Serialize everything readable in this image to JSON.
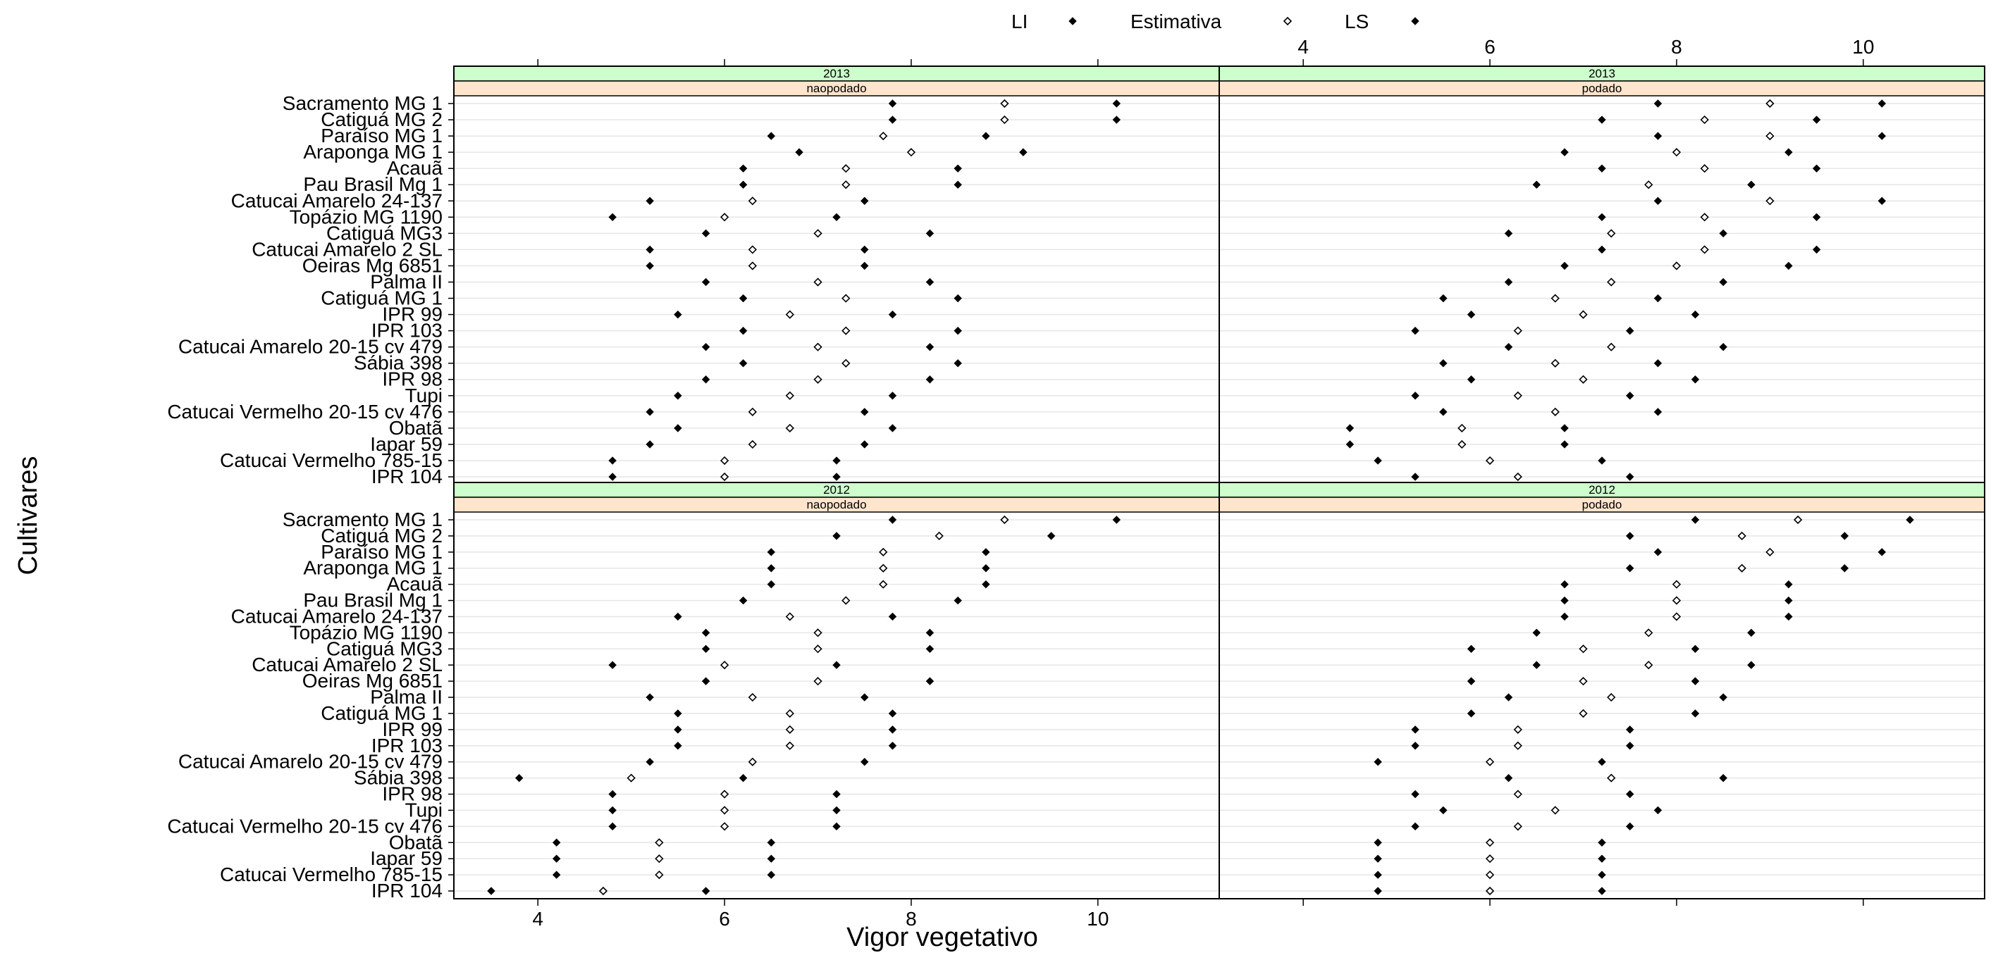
{
  "chart_data": {
    "type": "scatter",
    "title": "",
    "xlabel": "Vigor vegetativo",
    "ylabel": "Cultivares",
    "xlim": [
      3.1,
      11.3
    ],
    "xticks": [
      4,
      6,
      8,
      10
    ],
    "grid": true,
    "legend_position": "top",
    "legend": [
      {
        "label": "LI",
        "marker": "filled-diamond"
      },
      {
        "label": "Estimativa",
        "marker": "open-diamond"
      },
      {
        "label": "LS",
        "marker": "filled-diamond"
      }
    ],
    "colors": {
      "strip_year": "#ccffcc",
      "strip_treatment": "#ffe5cc",
      "frame": "#000000",
      "grid": "#e6e6e6"
    },
    "categories": [
      "Sacramento MG 1",
      "Catiguá MG 2",
      "Paraíso MG 1",
      "Araponga MG 1",
      "Acauã",
      "Pau Brasil Mg 1",
      "Catucai Amarelo 24-137",
      "Topázio MG 1190",
      "Catiguá MG3",
      "Catucai Amarelo 2 SL",
      "Oeiras Mg 6851",
      "Palma II",
      "Catiguá MG 1",
      "IPR 99",
      "IPR 103",
      "Catucai Amarelo 20-15 cv 479",
      "Sábia 398",
      "IPR 98",
      "Tupi",
      "Catucai Vermelho 20-15 cv 476",
      "Obatã",
      "Iapar 59",
      "Catucai Vermelho 785-15",
      "IPR 104"
    ],
    "panels": [
      {
        "year": "2013",
        "treatment": "naopodado",
        "LI": [
          7.8,
          7.8,
          6.5,
          6.8,
          6.2,
          6.2,
          5.2,
          4.8,
          5.8,
          5.2,
          5.2,
          5.8,
          6.2,
          5.5,
          6.2,
          5.8,
          6.2,
          5.8,
          5.5,
          5.2,
          5.5,
          5.2,
          4.8,
          4.8
        ],
        "est": [
          9.0,
          9.0,
          7.7,
          8.0,
          7.3,
          7.3,
          6.3,
          6.0,
          7.0,
          6.3,
          6.3,
          7.0,
          7.3,
          6.7,
          7.3,
          7.0,
          7.3,
          7.0,
          6.7,
          6.3,
          6.7,
          6.3,
          6.0,
          6.0
        ],
        "LS": [
          10.2,
          10.2,
          8.8,
          9.2,
          8.5,
          8.5,
          7.5,
          7.2,
          8.2,
          7.5,
          7.5,
          8.2,
          8.5,
          7.8,
          8.5,
          8.2,
          8.5,
          8.2,
          7.8,
          7.5,
          7.8,
          7.5,
          7.2,
          7.2
        ]
      },
      {
        "year": "2013",
        "treatment": "podado",
        "LI": [
          7.8,
          7.2,
          7.8,
          6.8,
          7.2,
          6.5,
          7.8,
          7.2,
          6.2,
          7.2,
          6.8,
          6.2,
          5.5,
          5.8,
          5.2,
          6.2,
          5.5,
          5.8,
          5.2,
          5.5,
          4.5,
          4.5,
          4.8,
          5.2
        ],
        "est": [
          9.0,
          8.3,
          9.0,
          8.0,
          8.3,
          7.7,
          9.0,
          8.3,
          7.3,
          8.3,
          8.0,
          7.3,
          6.7,
          7.0,
          6.3,
          7.3,
          6.7,
          7.0,
          6.3,
          6.7,
          5.7,
          5.7,
          6.0,
          6.3
        ],
        "LS": [
          10.2,
          9.5,
          10.2,
          9.2,
          9.5,
          8.8,
          10.2,
          9.5,
          8.5,
          9.5,
          9.2,
          8.5,
          7.8,
          8.2,
          7.5,
          8.5,
          7.8,
          8.2,
          7.5,
          7.8,
          6.8,
          6.8,
          7.2,
          7.5
        ]
      },
      {
        "year": "2012",
        "treatment": "naopodado",
        "LI": [
          7.8,
          7.2,
          6.5,
          6.5,
          6.5,
          6.2,
          5.5,
          5.8,
          5.8,
          4.8,
          5.8,
          5.2,
          5.5,
          5.5,
          5.5,
          5.2,
          3.8,
          4.8,
          4.8,
          4.8,
          4.2,
          4.2,
          4.2,
          3.5
        ],
        "est": [
          9.0,
          8.3,
          7.7,
          7.7,
          7.7,
          7.3,
          6.7,
          7.0,
          7.0,
          6.0,
          7.0,
          6.3,
          6.7,
          6.7,
          6.7,
          6.3,
          5.0,
          6.0,
          6.0,
          6.0,
          5.3,
          5.3,
          5.3,
          4.7
        ],
        "LS": [
          10.2,
          9.5,
          8.8,
          8.8,
          8.8,
          8.5,
          7.8,
          8.2,
          8.2,
          7.2,
          8.2,
          7.5,
          7.8,
          7.8,
          7.8,
          7.5,
          6.2,
          7.2,
          7.2,
          7.2,
          6.5,
          6.5,
          6.5,
          5.8
        ]
      },
      {
        "year": "2012",
        "treatment": "podado",
        "LI": [
          8.2,
          7.5,
          7.8,
          7.5,
          6.8,
          6.8,
          6.8,
          6.5,
          5.8,
          6.5,
          5.8,
          6.2,
          5.8,
          5.2,
          5.2,
          4.8,
          6.2,
          5.2,
          5.5,
          5.2,
          4.8,
          4.8,
          4.8,
          4.8
        ],
        "est": [
          9.3,
          8.7,
          9.0,
          8.7,
          8.0,
          8.0,
          8.0,
          7.7,
          7.0,
          7.7,
          7.0,
          7.3,
          7.0,
          6.3,
          6.3,
          6.0,
          7.3,
          6.3,
          6.7,
          6.3,
          6.0,
          6.0,
          6.0,
          6.0
        ],
        "LS": [
          10.5,
          9.8,
          10.2,
          9.8,
          9.2,
          9.2,
          9.2,
          8.8,
          8.2,
          8.8,
          8.2,
          8.5,
          8.2,
          7.5,
          7.5,
          7.2,
          8.5,
          7.5,
          7.8,
          7.5,
          7.2,
          7.2,
          7.2,
          7.2
        ]
      }
    ]
  }
}
